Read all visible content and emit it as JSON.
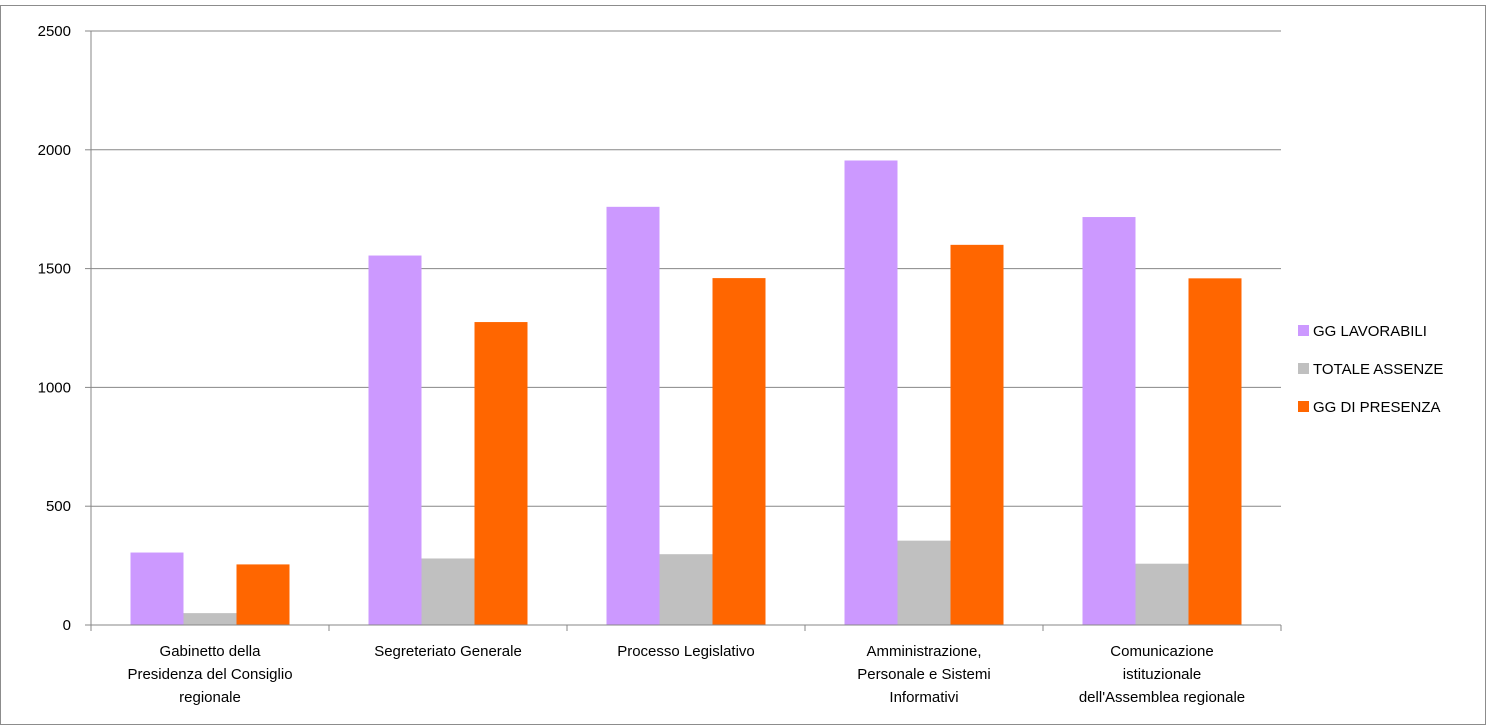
{
  "chart_data": {
    "type": "bar",
    "title": "",
    "xlabel": "",
    "ylabel": "",
    "categories": [
      [
        "Gabinetto della",
        "Presidenza del Consiglio",
        "regionale"
      ],
      [
        "Segreteriato Generale"
      ],
      [
        "Processo Legislativo"
      ],
      [
        "Amministrazione,",
        "Personale e Sistemi",
        "Informativi"
      ],
      [
        "Comunicazione",
        "istituzionale",
        "dell'Assemblea regionale"
      ]
    ],
    "series": [
      {
        "name": "GG LAVORABILI",
        "color": "#cc99ff",
        "values": [
          305,
          1555,
          1760,
          1955,
          1717
        ]
      },
      {
        "name": "TOTALE ASSENZE",
        "color": "#c0c0c0",
        "values": [
          50,
          280,
          298,
          355,
          258
        ]
      },
      {
        "name": "GG DI PRESENZA",
        "color": "#ff6600",
        "values": [
          255,
          1275,
          1460,
          1600,
          1459
        ]
      }
    ],
    "ylim": [
      0,
      2500
    ],
    "yticks": [
      "0",
      "500",
      "1000",
      "1500",
      "2000",
      "2500"
    ],
    "grid": true,
    "legend_position": "right"
  }
}
